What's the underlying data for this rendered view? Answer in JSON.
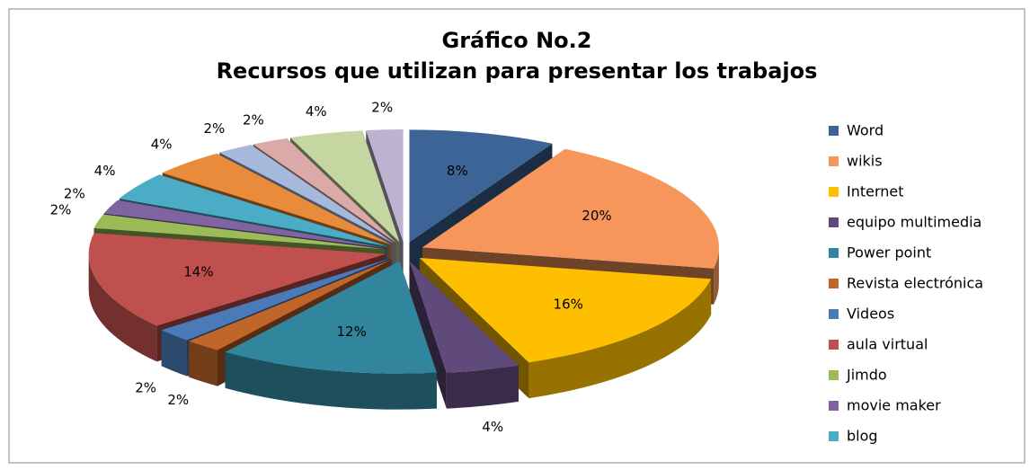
{
  "chart_data": {
    "type": "pie",
    "title": "Gráfico No.2",
    "subtitle": "Recursos que utilizan para presentar los trabajos",
    "categories": [
      "Word",
      "wikis",
      "Internet",
      "equipo multimedia",
      "Power point",
      "Revista electrónica",
      "Videos",
      "aula virtual",
      "Jimdo",
      "movie maker",
      "blog",
      null,
      null,
      null,
      null,
      null
    ],
    "values": [
      8,
      20,
      16,
      4,
      12,
      2,
      2,
      14,
      2,
      2,
      4,
      4,
      2,
      2,
      4,
      2
    ],
    "value_labels": [
      "8%",
      "20%",
      "16%",
      "4%",
      "12%",
      "2%",
      "2%",
      "14%",
      "2%",
      "2%",
      "4%",
      "4%",
      "2%",
      "2%",
      "4%",
      "2%"
    ],
    "colors": [
      "#3c6496",
      "#f7965a",
      "#fdbf00",
      "#604a7b",
      "#31859c",
      "#c0662a",
      "#4a7ab8",
      "#c0504d",
      "#9bbb59",
      "#8064a2",
      "#4bacc6",
      "#e88b3a",
      "#a6b9dd",
      "#dba9a8",
      "#c5d6a1",
      "#bfb3d2"
    ],
    "legend": "right"
  }
}
